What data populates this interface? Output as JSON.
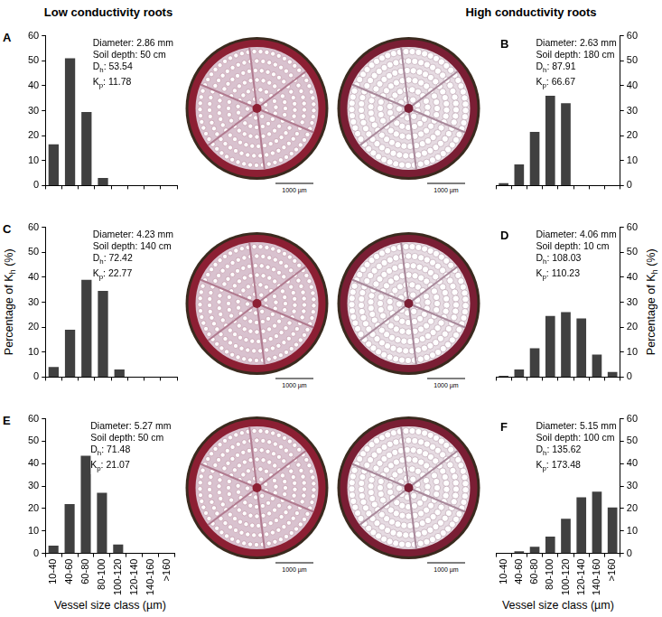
{
  "headers": [
    "Low conductivity roots",
    "High conductivity roots"
  ],
  "chart_data": [
    {
      "panel": "A",
      "type": "bar",
      "categories": [
        "10-40",
        "40-60",
        "60-80",
        "80-100",
        "100-120",
        "120-140",
        "140-160",
        ">160"
      ],
      "values": [
        16.5,
        51,
        29.5,
        3,
        0,
        0,
        0,
        0
      ],
      "color": "#404040",
      "ylim": [
        0,
        60
      ],
      "yticks": [
        0,
        10,
        20,
        30,
        40,
        50,
        60
      ],
      "grid": false,
      "tick_labels": "y",
      "info": [
        "Diameter: 2.86 mm",
        "Soil depth: 50 cm"
      ],
      "stats": [
        {
          "label": "D",
          "subscript": "h",
          "after": ":",
          "value": 53.54
        },
        {
          "label": "K",
          "subscript": "p",
          "after": ":",
          "value": 11.78
        }
      ]
    },
    {
      "panel": "B",
      "type": "bar",
      "categories": [
        "10-40",
        "40-60",
        "60-80",
        "80-100",
        "100-120",
        "120-140",
        "140-160",
        ">160"
      ],
      "values": [
        1,
        8.5,
        21.5,
        36,
        33,
        0,
        0,
        0
      ],
      "color": "#404040",
      "ylim": [
        0,
        60
      ],
      "yticks": [
        0,
        10,
        20,
        30,
        40,
        50,
        60
      ],
      "grid": false,
      "tick_labels": "y",
      "info": [
        "Diameter: 2.63 mm",
        "Soil depth: 180 cm"
      ],
      "stats": [
        {
          "label": "D",
          "subscript": "h",
          "after": ":",
          "value": 87.91
        },
        {
          "label": "K",
          "subscript": "p",
          "after": ":",
          "value": 66.67
        }
      ]
    },
    {
      "panel": "C",
      "type": "bar",
      "categories": [
        "10-40",
        "40-60",
        "60-80",
        "80-100",
        "100-120",
        "120-140",
        "140-160",
        ">160"
      ],
      "values": [
        4,
        19,
        39,
        34.5,
        3,
        0,
        0,
        0
      ],
      "color": "#404040",
      "ylim": [
        0,
        60
      ],
      "yticks": [
        0,
        10,
        20,
        30,
        40,
        50,
        60
      ],
      "grid": false,
      "tick_labels": "y",
      "y_label": {
        "before": "Percentage of ",
        "label": "K",
        "subscript": "h",
        "after": " (%)"
      },
      "info": [
        "Diameter: 4.23 mm",
        "Soil depth: 140 cm"
      ],
      "stats": [
        {
          "label": "D",
          "subscript": "h",
          "after": ":",
          "value": 72.42
        },
        {
          "label": "K",
          "subscript": "p",
          "after": ":",
          "value": 22.77
        }
      ]
    },
    {
      "panel": "D",
      "type": "bar",
      "categories": [
        "10-40",
        "40-60",
        "60-80",
        "80-100",
        "100-120",
        "120-140",
        "140-160",
        ">160"
      ],
      "values": [
        0.5,
        3,
        11.5,
        24.5,
        26,
        23.5,
        9,
        2
      ],
      "color": "#404040",
      "ylim": [
        0,
        60
      ],
      "yticks": [
        0,
        10,
        20,
        30,
        40,
        50,
        60
      ],
      "grid": false,
      "tick_labels": "y",
      "y_label": {
        "before": "Percentage of ",
        "label": "K",
        "subscript": "h",
        "after": " (%)"
      },
      "info": [
        "Diameter: 4.06 mm",
        "Soil depth: 10 cm"
      ],
      "stats": [
        {
          "label": "D",
          "subscript": "h",
          "after": ":",
          "value": 108.03
        },
        {
          "label": "K",
          "subscript": "p",
          "after": ":",
          "value": 110.23
        }
      ]
    },
    {
      "panel": "E",
      "type": "bar",
      "categories": [
        "10-40",
        "40-60",
        "60-80",
        "80-100",
        "100-120",
        "120-140",
        "140-160",
        ">160"
      ],
      "values": [
        3.5,
        22,
        43.5,
        27,
        4,
        0,
        0,
        0
      ],
      "color": "#404040",
      "ylim": [
        0,
        60
      ],
      "yticks": [
        0,
        10,
        20,
        30,
        40,
        50,
        60
      ],
      "grid": false,
      "x_label": "Vessel size class (µm)",
      "info": [
        "Diameter: 5.27 mm",
        "Soil depth: 50 cm"
      ],
      "stats": [
        {
          "label": "D",
          "subscript": "h",
          "after": ":",
          "value": 71.48
        },
        {
          "label": "K",
          "subscript": "p",
          "after": ":",
          "value": 21.07
        }
      ]
    },
    {
      "panel": "F",
      "type": "bar",
      "categories": [
        "10-40",
        "40-60",
        "60-80",
        "80-100",
        "100-120",
        "120-140",
        "140-160",
        ">160"
      ],
      "values": [
        0,
        1,
        3,
        7.5,
        15.5,
        25,
        27.5,
        20.5
      ],
      "color": "#404040",
      "ylim": [
        0,
        60
      ],
      "yticks": [
        0,
        10,
        20,
        30,
        40,
        50,
        60
      ],
      "grid": false,
      "x_label": "Vessel size class (µm)",
      "info": [
        "Diameter: 5.15 mm",
        "Soil depth: 100 cm"
      ],
      "stats": [
        {
          "label": "D",
          "subscript": "h",
          "after": ":",
          "value": 135.62
        },
        {
          "label": "K",
          "subscript": "p",
          "after": ":",
          "value": 173.48
        }
      ]
    }
  ],
  "images": [
    {
      "panel": "A",
      "scale_bar": "1000 µm"
    },
    {
      "panel": "B",
      "scale_bar": "1000 µm"
    },
    {
      "panel": "C",
      "scale_bar": "1000 µm"
    },
    {
      "panel": "D",
      "scale_bar": "1000 µm"
    },
    {
      "panel": "E",
      "scale_bar": "1000 µm"
    },
    {
      "panel": "F",
      "scale_bar": "1000 µm"
    }
  ]
}
